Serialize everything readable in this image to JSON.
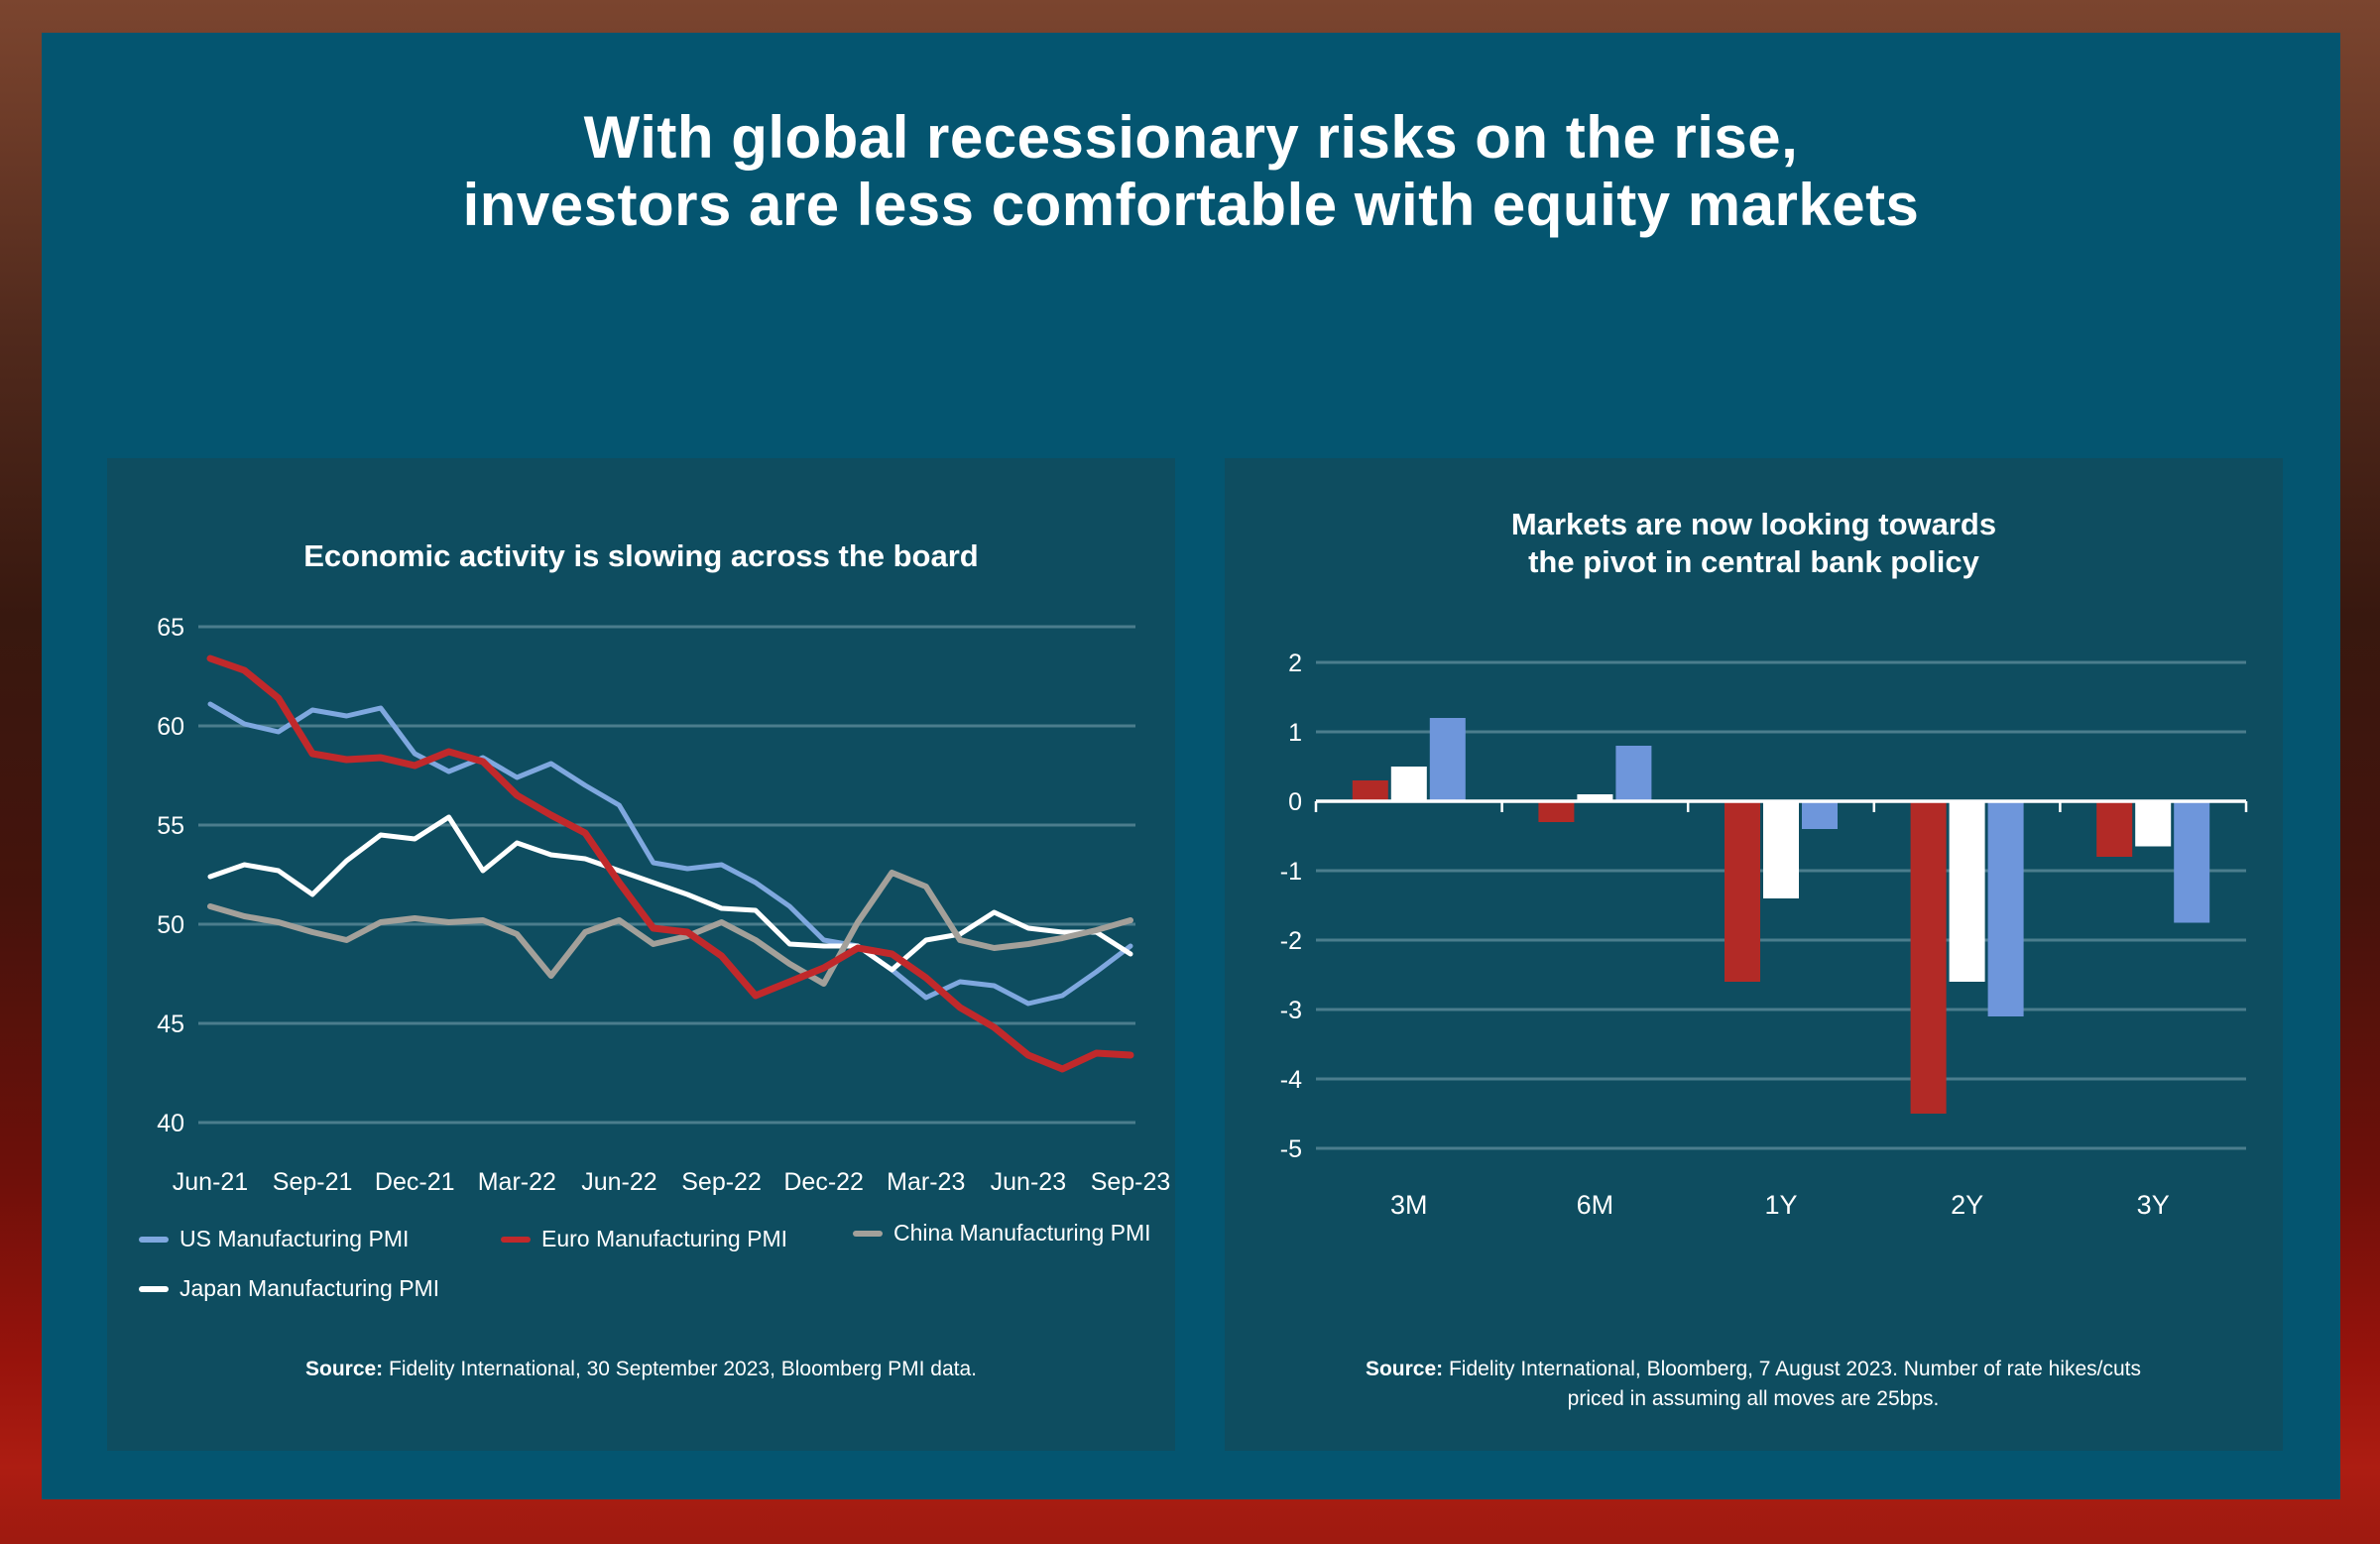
{
  "slide": {
    "title_line1": "With global recessionary risks on the rise,",
    "title_line2": "investors are less comfortable with equity markets"
  },
  "left_panel": {
    "title": "Economic activity is slowing across the board",
    "legend": [
      {
        "label": "US Manufacturing PMI",
        "color": "#7fa8df"
      },
      {
        "label": "Euro Manufacturing PMI",
        "color": "#c1292b"
      },
      {
        "label": "China Manufacturing PMI",
        "color": "#a3a09a"
      },
      {
        "label": "Japan Manufacturing PMI",
        "color": "#ffffff"
      }
    ],
    "source_label": "Source:",
    "source_text": " Fidelity International, 30 September 2023, Bloomberg PMI data."
  },
  "right_panel": {
    "title_line1": "Markets are now looking towards",
    "title_line2": "the pivot in central bank policy",
    "source_label": "Source:",
    "source_text": "  Fidelity International, Bloomberg, 7 August 2023. Number of rate hikes/cuts priced in assuming all moves are 25bps."
  },
  "colors": {
    "slide_background": "#045570",
    "panel_background": "#0e4d60",
    "gridline": "rgba(200,225,235,0.33)",
    "text": "#ffffff",
    "line_us": "#7fa8df",
    "line_euro": "#c1292b",
    "line_china": "#a3a09a",
    "line_japan": "#ffffff",
    "bar_red": "#b22a26",
    "bar_white": "#ffffff",
    "bar_blue": "#6e96db"
  },
  "chart_data": [
    {
      "type": "line",
      "title": "Economic activity is slowing across the board",
      "x_monthly_span": [
        "Jun-21",
        "Sep-23"
      ],
      "x_tick_labels": [
        "Jun-21",
        "Sep-21",
        "Dec-21",
        "Mar-22",
        "Jun-22",
        "Sep-22",
        "Dec-22",
        "Mar-23",
        "Jun-23",
        "Sep-23"
      ],
      "x_tick_every": 3,
      "ylim": [
        40,
        65
      ],
      "yticks": [
        65,
        60,
        55,
        50,
        45,
        40
      ],
      "grid": true,
      "legend_position": "bottom",
      "draw_order": [
        0,
        3,
        2,
        1
      ],
      "series": [
        {
          "name": "US Manufacturing PMI",
          "color": "#7fa8df",
          "stroke_width": 5,
          "values": [
            61.1,
            60.1,
            59.7,
            60.8,
            60.5,
            60.9,
            58.6,
            57.7,
            58.4,
            57.4,
            58.1,
            57.0,
            56.0,
            53.1,
            52.8,
            53.0,
            52.1,
            50.9,
            49.2,
            48.9,
            47.7,
            46.3,
            47.1,
            46.9,
            46.0,
            46.4,
            47.6,
            48.9
          ]
        },
        {
          "name": "Euro Manufacturing PMI",
          "color": "#c1292b",
          "stroke_width": 7,
          "values": [
            63.4,
            62.8,
            61.4,
            58.6,
            58.3,
            58.4,
            58.0,
            58.7,
            58.2,
            56.5,
            55.5,
            54.6,
            52.1,
            49.8,
            49.6,
            48.4,
            46.4,
            47.1,
            47.8,
            48.8,
            48.5,
            47.3,
            45.8,
            44.8,
            43.4,
            42.7,
            43.5,
            43.4
          ]
        },
        {
          "name": "China Manufacturing PMI",
          "color": "#a3a09a",
          "stroke_width": 6,
          "values": [
            50.9,
            50.4,
            50.1,
            49.6,
            49.2,
            50.1,
            50.3,
            50.1,
            50.2,
            49.5,
            47.4,
            49.6,
            50.2,
            49.0,
            49.4,
            50.1,
            49.2,
            48.0,
            47.0,
            50.1,
            52.6,
            51.9,
            49.2,
            48.8,
            49.0,
            49.3,
            49.7,
            50.2
          ]
        },
        {
          "name": "Japan Manufacturing PMI",
          "color": "#ffffff",
          "stroke_width": 5,
          "values": [
            52.4,
            53.0,
            52.7,
            51.5,
            53.2,
            54.5,
            54.3,
            55.4,
            52.7,
            54.1,
            53.5,
            53.3,
            52.7,
            52.1,
            51.5,
            50.8,
            50.7,
            49.0,
            48.9,
            48.9,
            47.7,
            49.2,
            49.5,
            50.6,
            49.8,
            49.6,
            49.6,
            48.5
          ]
        }
      ]
    },
    {
      "type": "bar",
      "title": "Markets are now looking towards the pivot in central bank policy",
      "categories": [
        "3M",
        "6M",
        "1Y",
        "2Y",
        "3Y"
      ],
      "ylim": [
        -5,
        2
      ],
      "yticks": [
        2,
        1,
        0,
        -1,
        -2,
        -3,
        -4,
        -5
      ],
      "grid": true,
      "legend_position": "none",
      "series": [
        {
          "name": "series-red",
          "color": "#b22a26",
          "values": [
            0.3,
            -0.3,
            -2.6,
            -4.5,
            -0.8
          ]
        },
        {
          "name": "series-white",
          "color": "#ffffff",
          "values": [
            0.5,
            0.1,
            -1.4,
            -2.6,
            -0.65
          ]
        },
        {
          "name": "series-blue",
          "color": "#6e96db",
          "values": [
            1.2,
            0.8,
            -0.4,
            -3.1,
            -1.75
          ]
        }
      ]
    }
  ]
}
